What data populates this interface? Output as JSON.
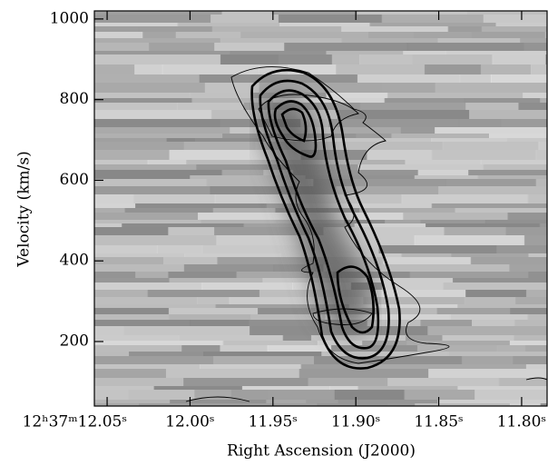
{
  "chart_data": {
    "type": "pv-diagram",
    "x_label": "Right Ascension (J2000)",
    "y_label": "Velocity (km/s)",
    "xlim": [
      12.0577,
      11.7841
    ],
    "xticks": [
      {
        "value": 12.05,
        "label": "12ʰ37ᵐ12.05ˢ"
      },
      {
        "value": 12.0,
        "label": "12.00ˢ"
      },
      {
        "value": 11.95,
        "label": "11.95ˢ"
      },
      {
        "value": 11.9,
        "label": "11.90ˢ"
      },
      {
        "value": 11.85,
        "label": "11.85ˢ"
      },
      {
        "value": 11.8,
        "label": "11.80ˢ"
      }
    ],
    "ylim": [
      40,
      1020
    ],
    "yticks": [
      200,
      400,
      600,
      800,
      1000
    ]
  }
}
